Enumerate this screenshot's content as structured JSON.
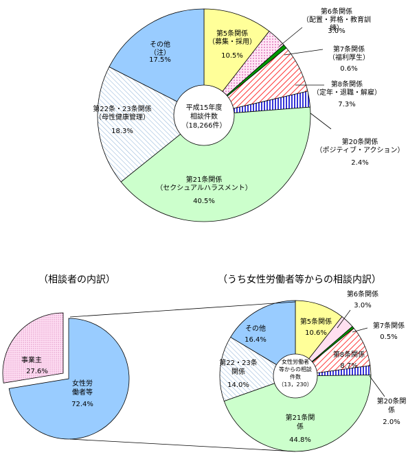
{
  "chart_data": [
    {
      "type": "pie",
      "center_label": [
        "平成15年度",
        "相談件数",
        "（18,266件）"
      ],
      "slices": [
        {
          "label": [
            "第5条関係",
            "（募集・採用）"
          ],
          "value": 10.5,
          "value_text": "10.5%",
          "color": "#ffff99"
        },
        {
          "label": [
            "第6条関係",
            "（配置・昇格・教育訓",
            "練）"
          ],
          "value": 3.0,
          "value_text": "3.0%",
          "color": "#ff66cc"
        },
        {
          "label": [
            "第7条関係",
            "（福利厚生）"
          ],
          "value": 0.6,
          "value_text": "0.6%",
          "color": "#009900"
        },
        {
          "label": [
            "第8条関係",
            "（定年・退職・解雇）"
          ],
          "value": 7.3,
          "value_text": "7.3%",
          "color": "#ff6666"
        },
        {
          "label": [
            "第20条関係",
            "（ポジティブ・アクション）"
          ],
          "value": 2.4,
          "value_text": "2.4%",
          "color": "#0000cc"
        },
        {
          "label": [
            "第21条関係",
            "（セクシュアルハラスメント）"
          ],
          "value": 40.5,
          "value_text": "40.5%",
          "color": "#ccffcc"
        },
        {
          "label": [
            "第22条・23条関係",
            "（母性健康管理）"
          ],
          "value": 18.3,
          "value_text": "18.3%",
          "color": "#99ccff"
        },
        {
          "label": [
            "その他",
            "（注）"
          ],
          "value": 17.5,
          "value_text": "17.5%",
          "color": "#99ccff"
        }
      ]
    },
    {
      "type": "pie",
      "title": "（相談者の内訳）",
      "slices": [
        {
          "label": [
            "女性労",
            "働者等"
          ],
          "value": 72.4,
          "value_text": "72.4%",
          "color": "#99ccff"
        },
        {
          "label": [
            "事業主"
          ],
          "value": 27.6,
          "value_text": "27.6%",
          "color": "#ffccff"
        }
      ]
    },
    {
      "type": "pie",
      "title": "（うち女性労働者等からの相談内訳）",
      "center_label": [
        "女性労働者",
        "等からの相談",
        "件数",
        "（13，230）"
      ],
      "slices": [
        {
          "label": [
            "第5条関係"
          ],
          "value": 10.6,
          "value_text": "10.6%",
          "color": "#ffff99"
        },
        {
          "label": [
            "第6条関係"
          ],
          "value": 3.0,
          "value_text": "3.0%",
          "color": "#ffe0f0"
        },
        {
          "label": [
            "第7条関係"
          ],
          "value": 0.5,
          "value_text": "0.5%",
          "color": "#009900"
        },
        {
          "label": [
            "第8条関係"
          ],
          "value": 8.7,
          "value_text": "8.7%",
          "color": "#ff6666"
        },
        {
          "label": [
            "第20条関",
            "係"
          ],
          "value": 2.0,
          "value_text": "2.0%",
          "color": "#0000cc"
        },
        {
          "label": [
            "第21条関",
            "係"
          ],
          "value": 44.8,
          "value_text": "44.8%",
          "color": "#ccffcc"
        },
        {
          "label": [
            "第22・23条",
            "関係"
          ],
          "value": 14.0,
          "value_text": "14.0%",
          "color": "#99ccff"
        },
        {
          "label": [
            "その他"
          ],
          "value": 16.4,
          "value_text": "16.4%",
          "color": "#99ccff"
        }
      ]
    }
  ]
}
